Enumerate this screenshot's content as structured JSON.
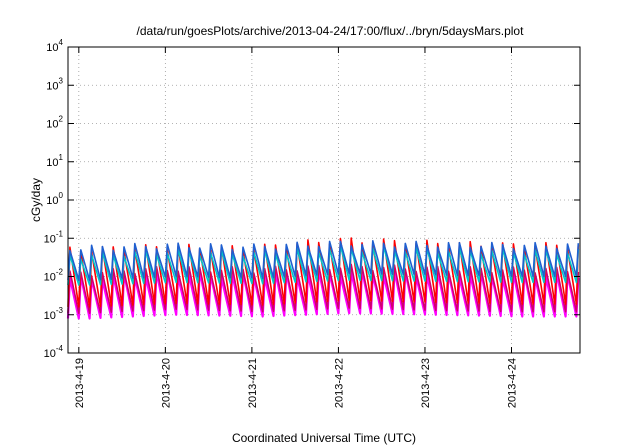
{
  "chart_data": {
    "type": "line",
    "title": "/data/run/goesPlots/archive/2013-04-24/17:00/flux/../bryn/5daysMars.plot",
    "xlabel": "Coordinated Universal Time (UTC)",
    "ylabel": "cGy/day",
    "y_scale": "log",
    "ylim": [
      0.0001,
      10000
    ],
    "y_ticks": [
      {
        "base": "10",
        "exp": "4",
        "value": 10000
      },
      {
        "base": "10",
        "exp": "3",
        "value": 1000
      },
      {
        "base": "10",
        "exp": "2",
        "value": 100
      },
      {
        "base": "10",
        "exp": "1",
        "value": 10
      },
      {
        "base": "10",
        "exp": "0",
        "value": 1
      },
      {
        "base": "10",
        "exp": "-1",
        "value": 0.1
      },
      {
        "base": "10",
        "exp": "-2",
        "value": 0.01
      },
      {
        "base": "10",
        "exp": "-3",
        "value": 0.001
      },
      {
        "base": "10",
        "exp": "-4",
        "value": 0.0001
      }
    ],
    "xlim": [
      "2013-04-18 21:00",
      "2013-04-24 19:00"
    ],
    "x_ticks": [
      "2013-4-19",
      "2013-4-20",
      "2013-4-21",
      "2013-4-22",
      "2013-4-23",
      "2013-4-24"
    ],
    "grid": true,
    "sawtooth_period_hours": 3,
    "series": [
      {
        "color": "#ff00ff",
        "peak": [
          0.009,
          0.012,
          0.011,
          0.013,
          0.012,
          0.011
        ],
        "trough": [
          0.0008,
          0.001,
          0.0009,
          0.0011,
          0.001,
          0.0009
        ]
      },
      {
        "color": "#d0006e",
        "peak": [
          0.012,
          0.016,
          0.015,
          0.018,
          0.016,
          0.015
        ],
        "trough": [
          0.0011,
          0.0014,
          0.0012,
          0.0015,
          0.0013,
          0.0012
        ]
      },
      {
        "color": "#ff0000",
        "peak": [
          0.05,
          0.06,
          0.055,
          0.09,
          0.075,
          0.065
        ],
        "trough": [
          0.0016,
          0.002,
          0.0018,
          0.0024,
          0.0021,
          0.0019
        ]
      },
      {
        "color": "#00c8c8",
        "peak": [
          0.035,
          0.045,
          0.04,
          0.055,
          0.05,
          0.045
        ],
        "trough": [
          0.006,
          0.007,
          0.0065,
          0.008,
          0.0075,
          0.007
        ]
      },
      {
        "color": "#1f5fd0",
        "peak": [
          0.055,
          0.065,
          0.06,
          0.075,
          0.07,
          0.065
        ],
        "trough": [
          0.008,
          0.01,
          0.009,
          0.012,
          0.011,
          0.01
        ]
      }
    ]
  }
}
